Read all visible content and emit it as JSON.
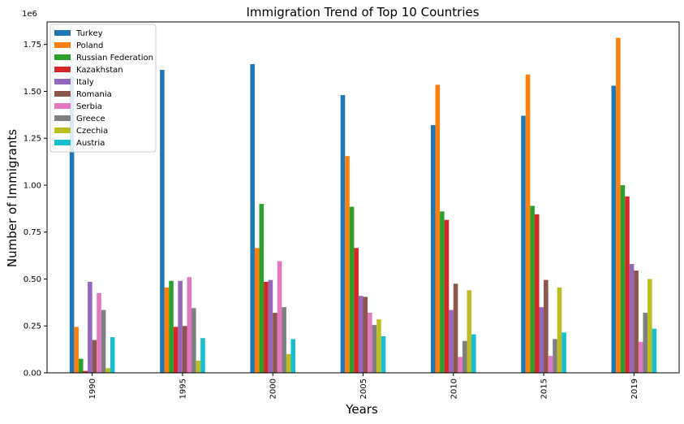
{
  "chart_data": {
    "type": "bar",
    "title": "Immigration Trend of Top 10 Countries",
    "xlabel": "Years",
    "ylabel": "Number of Immigrants",
    "y_multiplier": "1e6",
    "categories": [
      "1990",
      "1995",
      "2000",
      "2005",
      "2010",
      "2015",
      "2019"
    ],
    "ylim": [
      0,
      1.87
    ],
    "yticks": [
      "0.00",
      "0.25",
      "0.50",
      "0.75",
      "1.00",
      "1.25",
      "1.50",
      "1.75"
    ],
    "grid": false,
    "legend_position": "top-left",
    "series": [
      {
        "name": "Turkey",
        "color": "#1f77b4",
        "values": [
          1.58,
          1.615,
          1.645,
          1.48,
          1.32,
          1.37,
          1.53
        ]
      },
      {
        "name": "Poland",
        "color": "#ff7f0e",
        "values": [
          0.245,
          0.455,
          0.665,
          1.155,
          1.535,
          1.59,
          1.785
        ]
      },
      {
        "name": "Russian Federation",
        "color": "#2ca02c",
        "values": [
          0.075,
          0.49,
          0.9,
          0.885,
          0.86,
          0.89,
          1.0
        ]
      },
      {
        "name": "Kazakhstan",
        "color": "#d62728",
        "values": [
          0.01,
          0.245,
          0.485,
          0.665,
          0.815,
          0.845,
          0.94
        ]
      },
      {
        "name": "Italy",
        "color": "#9467bd",
        "values": [
          0.485,
          0.49,
          0.495,
          0.41,
          0.335,
          0.35,
          0.58
        ]
      },
      {
        "name": "Romania",
        "color": "#8c564b",
        "values": [
          0.175,
          0.25,
          0.32,
          0.405,
          0.475,
          0.495,
          0.545
        ]
      },
      {
        "name": "Serbia",
        "color": "#e377c2",
        "values": [
          0.425,
          0.51,
          0.595,
          0.32,
          0.085,
          0.09,
          0.165
        ]
      },
      {
        "name": "Greece",
        "color": "#7f7f7f",
        "values": [
          0.335,
          0.345,
          0.35,
          0.255,
          0.17,
          0.18,
          0.32
        ]
      },
      {
        "name": "Czechia",
        "color": "#bcbd22",
        "values": [
          0.025,
          0.065,
          0.1,
          0.285,
          0.44,
          0.455,
          0.5
        ]
      },
      {
        "name": "Austria",
        "color": "#17becf",
        "values": [
          0.19,
          0.185,
          0.18,
          0.195,
          0.205,
          0.215,
          0.235
        ]
      }
    ]
  }
}
